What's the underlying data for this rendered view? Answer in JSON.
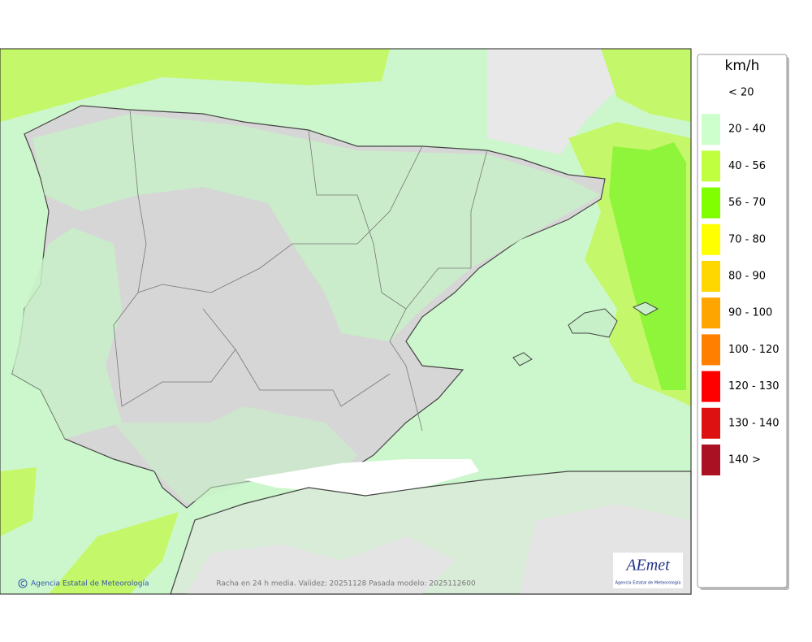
{
  "map": {
    "credit": "Agencia Estatal de Meteorología",
    "caption": "Racha en 24 h media. Validez: 20251128 Pasada modelo: 2025112600"
  },
  "logo": {
    "text": "AEmet",
    "subtitle": "Agencia Estatal de Meteorología"
  },
  "legend": {
    "title": "km/h",
    "items": [
      {
        "label": "< 20",
        "color": "#ffffff"
      },
      {
        "label": "20 - 40",
        "color": "#ccffcc"
      },
      {
        "label": "40 - 56",
        "color": "#bfff3f"
      },
      {
        "label": "56 - 70",
        "color": "#7fff00"
      },
      {
        "label": "70 - 80",
        "color": "#ffff00"
      },
      {
        "label": "80 - 90",
        "color": "#ffd700"
      },
      {
        "label": "90 - 100",
        "color": "#ffa500"
      },
      {
        "label": "100 - 120",
        "color": "#ff8000"
      },
      {
        "label": "120 - 130",
        "color": "#ff0000"
      },
      {
        "label": "130 - 140",
        "color": "#dd1111"
      },
      {
        "label": "140 >",
        "color": "#aa1122"
      }
    ]
  }
}
